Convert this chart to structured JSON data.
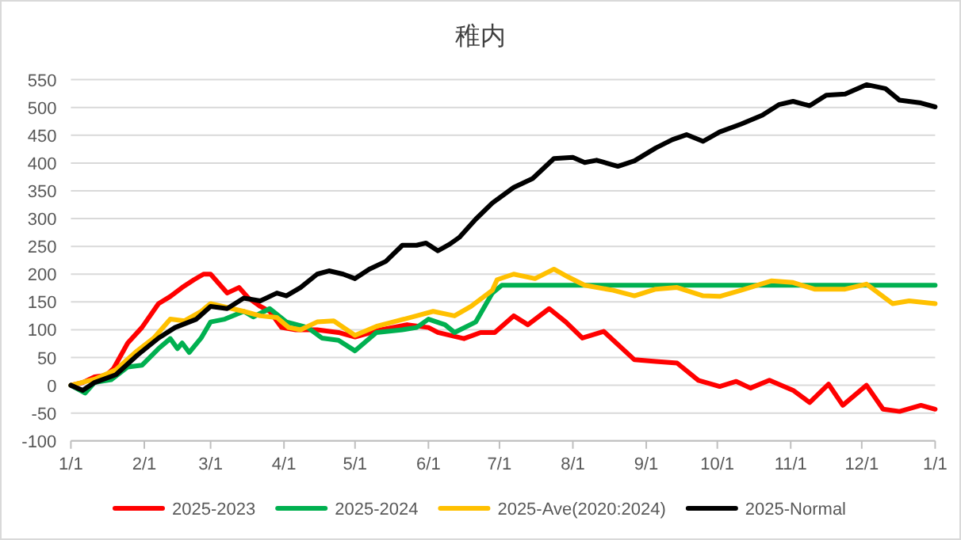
{
  "chart_data": {
    "type": "line",
    "title": "稚内",
    "xlim": [
      "2025-01-01",
      "2026-01-01"
    ],
    "ylim": [
      -100,
      550
    ],
    "xticks": [
      {
        "value": "2025-01-01",
        "label": "1/1"
      },
      {
        "value": "2025-02-01",
        "label": "2/1"
      },
      {
        "value": "2025-03-01",
        "label": "3/1"
      },
      {
        "value": "2025-04-01",
        "label": "4/1"
      },
      {
        "value": "2025-05-01",
        "label": "5/1"
      },
      {
        "value": "2025-06-01",
        "label": "6/1"
      },
      {
        "value": "2025-07-01",
        "label": "7/1"
      },
      {
        "value": "2025-08-01",
        "label": "8/1"
      },
      {
        "value": "2025-09-01",
        "label": "9/1"
      },
      {
        "value": "2025-10-01",
        "label": "10/1"
      },
      {
        "value": "2025-11-01",
        "label": "11/1"
      },
      {
        "value": "2025-12-01",
        "label": "12/1"
      },
      {
        "value": "2026-01-01",
        "label": "1/1"
      }
    ],
    "yticks": [
      -100,
      -50,
      0,
      50,
      100,
      150,
      200,
      250,
      300,
      350,
      400,
      450,
      500,
      550
    ],
    "grid": "y",
    "legend": "bottom",
    "line_style": "solid",
    "marker": "none",
    "series": [
      {
        "name": "2025-2023",
        "color": "#ff0000",
        "x": [
          "2025-01-01",
          "2025-01-06",
          "2025-01-11",
          "2025-01-16",
          "2025-01-19",
          "2025-01-25",
          "2025-01-31",
          "2025-02-07",
          "2025-02-12",
          "2025-02-17",
          "2025-02-22",
          "2025-02-26",
          "2025-03-01",
          "2025-03-08",
          "2025-03-13",
          "2025-03-17",
          "2025-03-22",
          "2025-03-26",
          "2025-03-31",
          "2025-04-06",
          "2025-04-15",
          "2025-04-24",
          "2025-05-01",
          "2025-05-12",
          "2025-05-23",
          "2025-06-01",
          "2025-06-05",
          "2025-06-16",
          "2025-06-23",
          "2025-06-29",
          "2025-07-07",
          "2025-07-13",
          "2025-07-22",
          "2025-07-29",
          "2025-08-05",
          "2025-08-14",
          "2025-08-27",
          "2025-09-05",
          "2025-09-14",
          "2025-09-23",
          "2025-10-02",
          "2025-10-09",
          "2025-10-15",
          "2025-10-23",
          "2025-11-02",
          "2025-11-09",
          "2025-11-17",
          "2025-11-23",
          "2025-12-03",
          "2025-12-10",
          "2025-12-17",
          "2025-12-26",
          "2026-01-01"
        ],
        "values": [
          0,
          5,
          15,
          18,
          30,
          76,
          104,
          147,
          160,
          176,
          190,
          200,
          200,
          166,
          176,
          157,
          142,
          133,
          104,
          100,
          100,
          95,
          87,
          100,
          109,
          104,
          95,
          84,
          95,
          95,
          125,
          109,
          138,
          114,
          85,
          97,
          46,
          43,
          40,
          9,
          -2,
          7,
          -5,
          9,
          -9,
          -31,
          2,
          -36,
          0,
          -43,
          -47,
          -36,
          -43
        ]
      },
      {
        "name": "2025-2024",
        "color": "#00b050",
        "x": [
          "2025-01-01",
          "2025-01-07",
          "2025-01-11",
          "2025-01-18",
          "2025-01-25",
          "2025-01-31",
          "2025-02-07",
          "2025-02-12",
          "2025-02-15",
          "2025-02-17",
          "2025-02-20",
          "2025-02-25",
          "2025-03-01",
          "2025-03-07",
          "2025-03-15",
          "2025-03-19",
          "2025-03-26",
          "2025-04-02",
          "2025-04-11",
          "2025-04-17",
          "2025-04-24",
          "2025-05-01",
          "2025-05-10",
          "2025-05-21",
          "2025-05-27",
          "2025-06-01",
          "2025-06-08",
          "2025-06-12",
          "2025-06-21",
          "2025-06-28",
          "2025-07-02",
          "2026-01-01"
        ],
        "values": [
          0,
          -14,
          5,
          10,
          33,
          36,
          66,
          84,
          66,
          76,
          59,
          85,
          114,
          119,
          133,
          123,
          138,
          114,
          104,
          85,
          81,
          62,
          95,
          100,
          104,
          119,
          109,
          95,
          114,
          166,
          180,
          180
        ]
      },
      {
        "name": "2025-Ave(2020:2024)",
        "color": "#ffc000",
        "x": [
          "2025-01-01",
          "2025-01-11",
          "2025-01-20",
          "2025-01-29",
          "2025-02-05",
          "2025-02-12",
          "2025-02-18",
          "2025-02-25",
          "2025-03-01",
          "2025-03-10",
          "2025-03-15",
          "2025-03-22",
          "2025-03-29",
          "2025-04-03",
          "2025-04-08",
          "2025-04-15",
          "2025-04-22",
          "2025-05-01",
          "2025-05-10",
          "2025-05-19",
          "2025-05-27",
          "2025-06-03",
          "2025-06-12",
          "2025-06-19",
          "2025-06-28",
          "2025-06-30",
          "2025-07-07",
          "2025-07-16",
          "2025-07-24",
          "2025-07-30",
          "2025-08-06",
          "2025-08-18",
          "2025-08-27",
          "2025-09-05",
          "2025-09-14",
          "2025-09-25",
          "2025-10-02",
          "2025-10-11",
          "2025-10-24",
          "2025-11-02",
          "2025-11-11",
          "2025-11-24",
          "2025-12-03",
          "2025-12-14",
          "2025-12-21",
          "2026-01-01"
        ],
        "values": [
          0,
          11,
          28,
          62,
          85,
          119,
          116,
          133,
          147,
          138,
          133,
          125,
          122,
          104,
          100,
          114,
          116,
          90,
          106,
          116,
          125,
          133,
          125,
          142,
          171,
          190,
          200,
          192,
          209,
          195,
          180,
          171,
          161,
          173,
          176,
          161,
          160,
          171,
          188,
          185,
          173,
          173,
          182,
          147,
          152,
          147
        ]
      },
      {
        "name": "2025-Normal",
        "color": "#000000",
        "x": [
          "2025-01-01",
          "2025-01-06",
          "2025-01-11",
          "2025-01-20",
          "2025-01-29",
          "2025-02-07",
          "2025-02-14",
          "2025-02-23",
          "2025-03-01",
          "2025-03-08",
          "2025-03-15",
          "2025-03-22",
          "2025-03-29",
          "2025-04-02",
          "2025-04-08",
          "2025-04-15",
          "2025-04-20",
          "2025-04-26",
          "2025-05-01",
          "2025-05-07",
          "2025-05-14",
          "2025-05-21",
          "2025-05-27",
          "2025-05-31",
          "2025-06-05",
          "2025-06-10",
          "2025-06-14",
          "2025-06-21",
          "2025-06-28",
          "2025-07-07",
          "2025-07-15",
          "2025-07-24",
          "2025-08-01",
          "2025-08-06",
          "2025-08-11",
          "2025-08-20",
          "2025-08-27",
          "2025-09-05",
          "2025-09-12",
          "2025-09-18",
          "2025-09-25",
          "2025-10-02",
          "2025-10-11",
          "2025-10-20",
          "2025-10-27",
          "2025-11-02",
          "2025-11-09",
          "2025-11-16",
          "2025-11-24",
          "2025-12-03",
          "2025-12-11",
          "2025-12-17",
          "2025-12-26",
          "2026-01-01"
        ],
        "values": [
          0,
          -9,
          5,
          19,
          54,
          85,
          104,
          119,
          142,
          138,
          157,
          152,
          166,
          161,
          176,
          200,
          206,
          200,
          192,
          209,
          223,
          252,
          252,
          256,
          242,
          254,
          266,
          299,
          328,
          356,
          372,
          408,
          410,
          401,
          405,
          394,
          404,
          427,
          442,
          451,
          439,
          456,
          470,
          486,
          505,
          511,
          503,
          522,
          524,
          541,
          534,
          513,
          508,
          501
        ]
      }
    ]
  }
}
